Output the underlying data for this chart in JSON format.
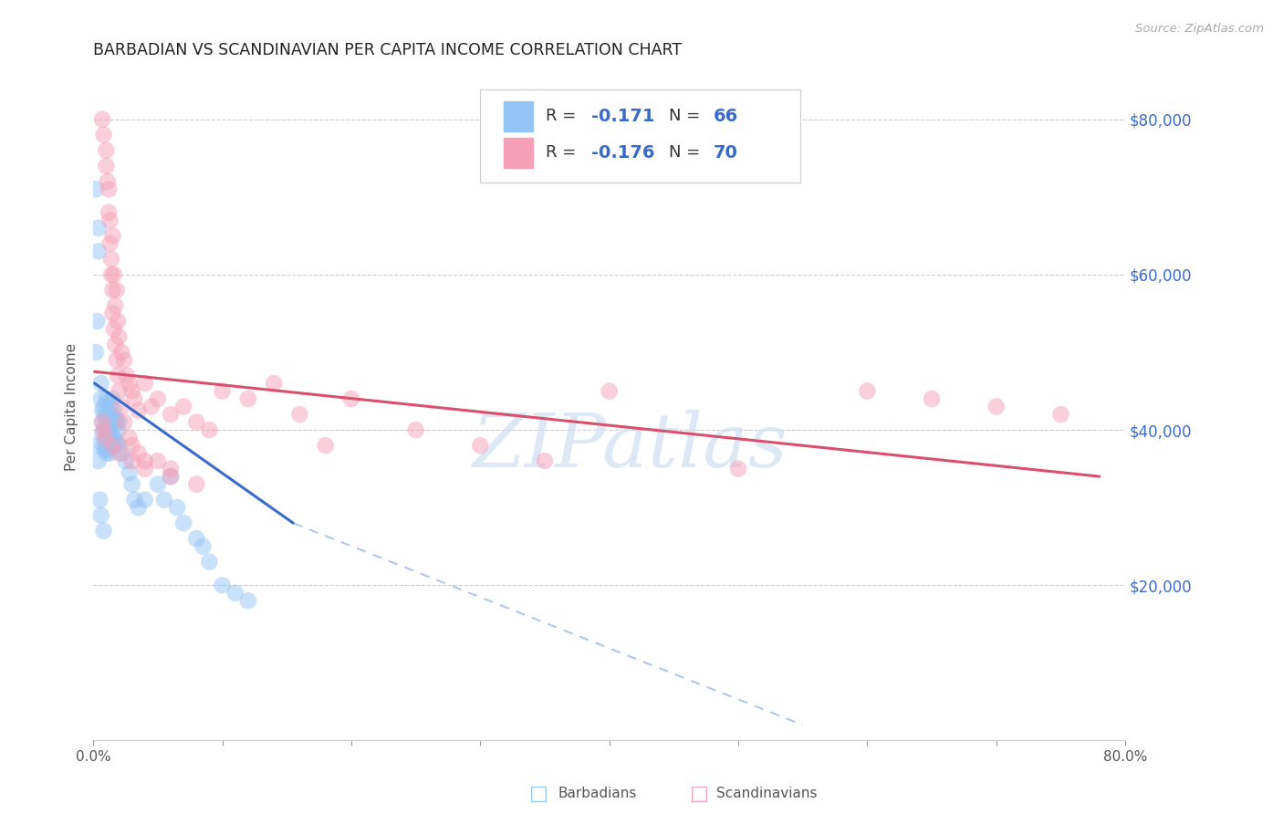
{
  "title": "BARBADIAN VS SCANDINAVIAN PER CAPITA INCOME CORRELATION CHART",
  "source": "Source: ZipAtlas.com",
  "ylabel": "Per Capita Income",
  "yticks": [
    20000,
    40000,
    60000,
    80000
  ],
  "ytick_labels": [
    "$20,000",
    "$40,000",
    "$60,000",
    "$80,000"
  ],
  "xlim": [
    0.0,
    0.8
  ],
  "ylim": [
    0,
    86000
  ],
  "barbadian_color": "#94c4f5",
  "scandinavian_color": "#f5a0b8",
  "blue_line_color": "#3a6bc9",
  "pink_line_color": "#d94f6e",
  "dashed_line_color": "#b0c8e8",
  "watermark_text": "ZIPatlas",
  "watermark_color": "#d0dff0",
  "legend_r1": "R = -0.171",
  "legend_n1": "N = 66",
  "legend_r2": "R = -0.176",
  "legend_n2": "N = 70",
  "legend_color": "#3a6bc9",
  "bottom_legend_label1": "Barbadians",
  "bottom_legend_label2": "Scandinavians",
  "barbadian_points_x": [
    0.002,
    0.004,
    0.004,
    0.003,
    0.006,
    0.006,
    0.007,
    0.007,
    0.007,
    0.008,
    0.008,
    0.009,
    0.009,
    0.009,
    0.01,
    0.01,
    0.01,
    0.01,
    0.011,
    0.011,
    0.011,
    0.012,
    0.012,
    0.012,
    0.013,
    0.013,
    0.013,
    0.013,
    0.014,
    0.014,
    0.015,
    0.015,
    0.015,
    0.016,
    0.016,
    0.017,
    0.017,
    0.018,
    0.018,
    0.019,
    0.02,
    0.02,
    0.022,
    0.025,
    0.028,
    0.03,
    0.032,
    0.035,
    0.04,
    0.05,
    0.055,
    0.06,
    0.065,
    0.07,
    0.08,
    0.085,
    0.09,
    0.1,
    0.11,
    0.12,
    0.002,
    0.003,
    0.004,
    0.005,
    0.006,
    0.008
  ],
  "barbadian_points_y": [
    71000,
    66000,
    63000,
    54000,
    46000,
    44000,
    42500,
    41000,
    39500,
    43000,
    38000,
    42000,
    40000,
    37500,
    44000,
    41500,
    39000,
    37000,
    43500,
    40500,
    38000,
    42000,
    40000,
    37500,
    43000,
    41000,
    39000,
    37000,
    42000,
    39500,
    44000,
    41000,
    38500,
    42500,
    39000,
    41500,
    38000,
    41000,
    38500,
    40000,
    41000,
    38000,
    37000,
    36000,
    34500,
    33000,
    31000,
    30000,
    31000,
    33000,
    31000,
    34000,
    30000,
    28000,
    26000,
    25000,
    23000,
    20000,
    19000,
    18000,
    50000,
    38000,
    36000,
    31000,
    29000,
    27000
  ],
  "scandinavian_points_x": [
    0.007,
    0.008,
    0.01,
    0.01,
    0.011,
    0.012,
    0.012,
    0.013,
    0.013,
    0.014,
    0.014,
    0.015,
    0.015,
    0.015,
    0.016,
    0.016,
    0.017,
    0.017,
    0.018,
    0.018,
    0.019,
    0.019,
    0.02,
    0.02,
    0.022,
    0.022,
    0.024,
    0.024,
    0.026,
    0.028,
    0.028,
    0.03,
    0.03,
    0.032,
    0.035,
    0.035,
    0.04,
    0.04,
    0.045,
    0.05,
    0.05,
    0.06,
    0.06,
    0.07,
    0.08,
    0.09,
    0.1,
    0.12,
    0.14,
    0.16,
    0.18,
    0.2,
    0.25,
    0.3,
    0.35,
    0.4,
    0.5,
    0.6,
    0.65,
    0.7,
    0.75,
    0.007,
    0.008,
    0.009,
    0.015,
    0.02,
    0.03,
    0.04,
    0.06,
    0.08
  ],
  "scandinavian_points_y": [
    80000,
    78000,
    76000,
    74000,
    72000,
    71000,
    68000,
    67000,
    64000,
    62000,
    60000,
    65000,
    58000,
    55000,
    60000,
    53000,
    56000,
    51000,
    58000,
    49000,
    54000,
    47000,
    52000,
    45000,
    50000,
    43000,
    49000,
    41000,
    47000,
    46000,
    39000,
    45000,
    38000,
    44000,
    42500,
    37000,
    46000,
    36000,
    43000,
    44000,
    36000,
    42000,
    35000,
    43000,
    41000,
    40000,
    45000,
    44000,
    46000,
    42000,
    38000,
    44000,
    40000,
    38000,
    36000,
    45000,
    35000,
    45000,
    44000,
    43000,
    42000,
    41000,
    40000,
    39000,
    38000,
    37000,
    36000,
    35000,
    34000,
    33000
  ],
  "blue_line_x": [
    0.001,
    0.155
  ],
  "blue_line_y": [
    46000,
    28000
  ],
  "dashed_line_x": [
    0.155,
    0.55
  ],
  "dashed_line_y": [
    28000,
    2000
  ],
  "pink_line_x": [
    0.001,
    0.78
  ],
  "pink_line_y": [
    47500,
    34000
  ]
}
